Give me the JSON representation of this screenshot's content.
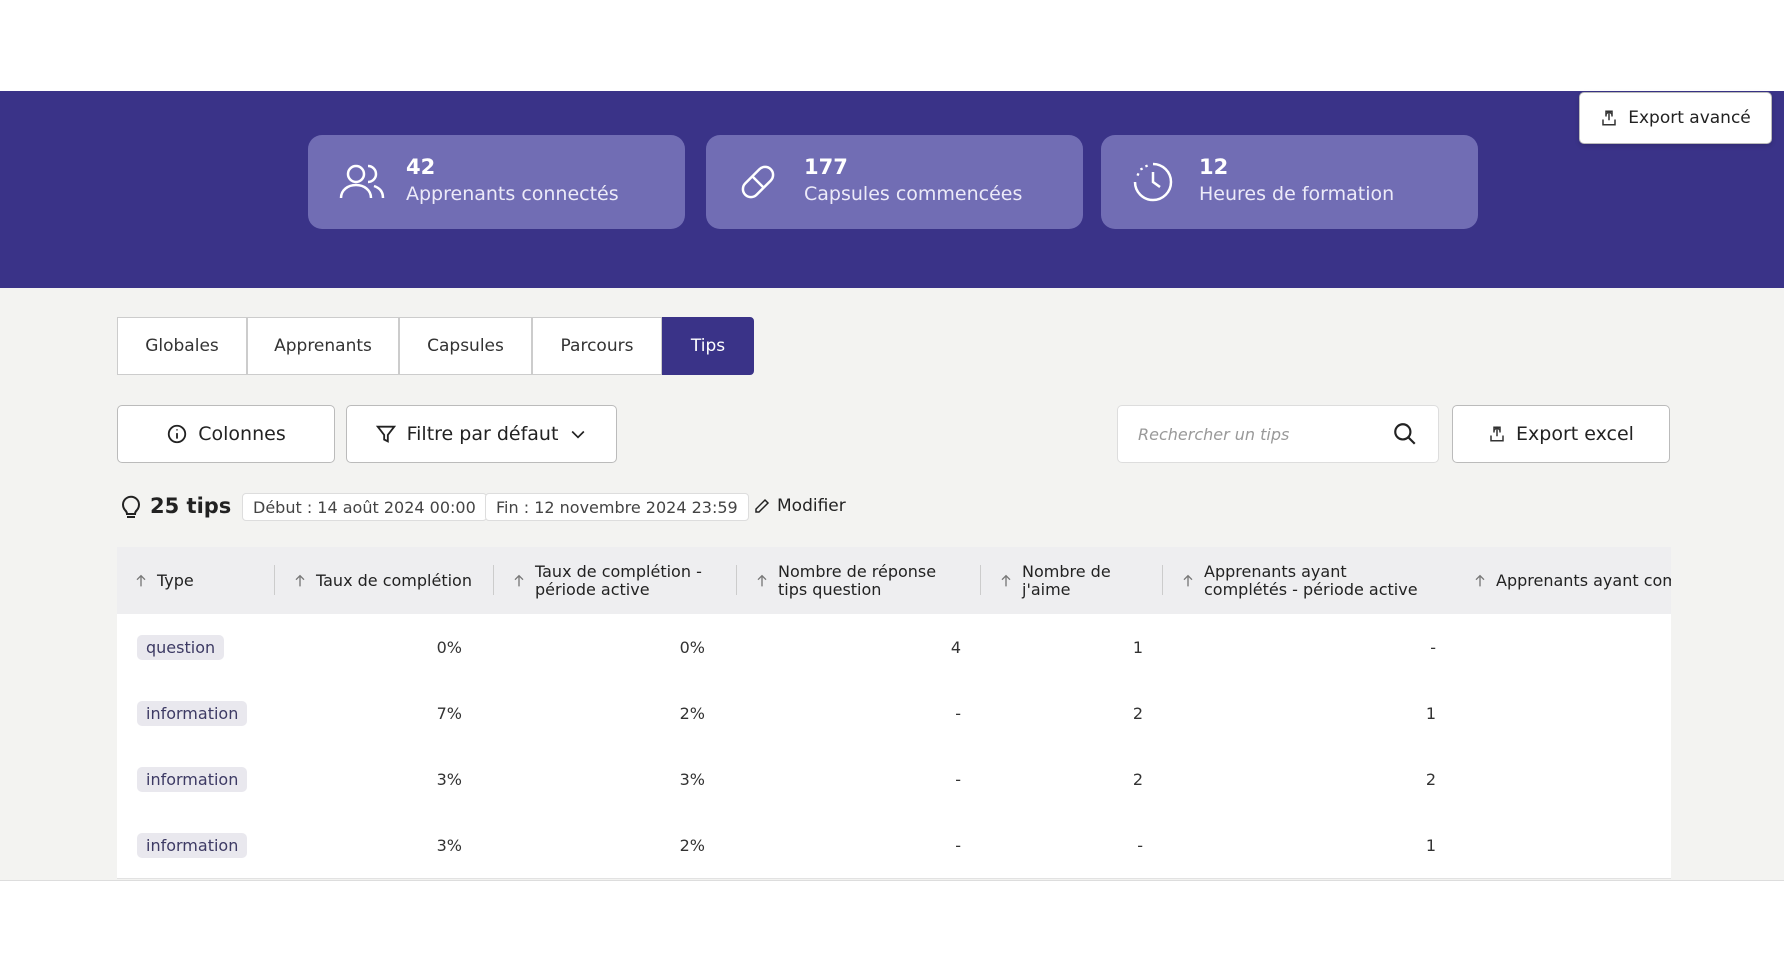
{
  "stats": [
    {
      "value": "42",
      "label": "Apprenants connectés"
    },
    {
      "value": "177",
      "label": "Capsules commencées"
    },
    {
      "value": "12",
      "label": "Heures de formation"
    }
  ],
  "export_advanced": "Export avancé",
  "tabs": [
    "Globales",
    "Apprenants",
    "Capsules",
    "Parcours",
    "Tips"
  ],
  "toolbar": {
    "columns": "Colonnes",
    "filter": "Filtre par défaut",
    "search_placeholder": "Rechercher un tips",
    "export": "Export excel"
  },
  "info": {
    "count": "25 tips",
    "start": "Début : 14 août 2024 00:00",
    "end": "Fin : 12 novembre 2024 23:59",
    "edit": "Modifier"
  },
  "table": {
    "columns": [
      "Type",
      "Taux de complétion",
      "Taux de complétion - période active",
      "Nombre de réponse tips question",
      "Nombre de j'aime",
      "Apprenants ayant complétés - période active",
      "Apprenants ayant comp"
    ],
    "rows": [
      [
        "question",
        "0%",
        "0%",
        "4",
        "1",
        "-"
      ],
      [
        "information",
        "7%",
        "2%",
        "-",
        "2",
        "1"
      ],
      [
        "information",
        "3%",
        "3%",
        "-",
        "2",
        "2"
      ],
      [
        "information",
        "3%",
        "2%",
        "-",
        "-",
        "1"
      ]
    ]
  }
}
